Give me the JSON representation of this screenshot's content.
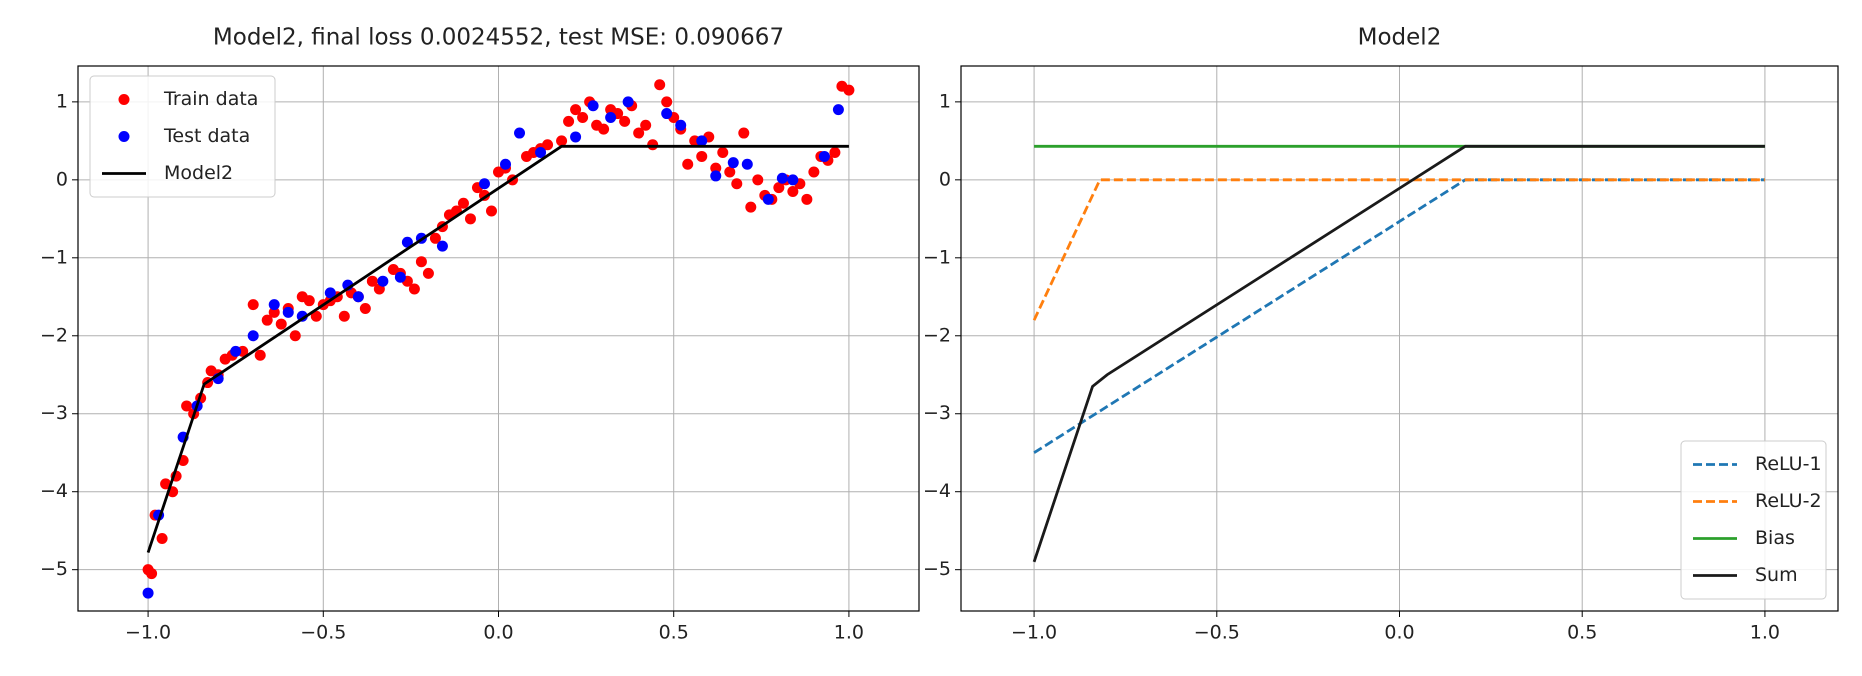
{
  "chart_data": [
    {
      "type": "line",
      "title": "Model2, final loss 0.0024552, test MSE: 0.090667",
      "legend": "upper left",
      "grid": true,
      "xlim": [
        -1.2,
        1.2
      ],
      "ylim": [
        -5.53,
        1.46
      ],
      "xticks": [
        {
          "value": -1.0,
          "label": "−1.0"
        },
        {
          "value": -0.5,
          "label": "−0.5"
        },
        {
          "value": 0.0,
          "label": "0.0"
        },
        0.5,
        {
          "value": 1.0,
          "label": "1.0"
        }
      ],
      "yticks": [
        {
          "value": -5,
          "label": "−5"
        },
        {
          "value": -4,
          "label": "−4"
        },
        {
          "value": -3,
          "label": "−3"
        },
        {
          "value": -2,
          "label": "−2"
        },
        {
          "value": -1,
          "label": "−1"
        },
        0,
        1
      ],
      "series": [
        {
          "name": "Train data",
          "color": "#ff0000",
          "style": "marker",
          "x": [
            -1.0,
            -0.99,
            -0.98,
            -0.96,
            -0.95,
            -0.93,
            -0.92,
            -0.9,
            -0.89,
            -0.87,
            -0.85,
            -0.83,
            -0.82,
            -0.8,
            -0.78,
            -0.76,
            -0.73,
            -0.7,
            -0.68,
            -0.66,
            -0.64,
            -0.62,
            -0.6,
            -0.58,
            -0.56,
            -0.54,
            -0.52,
            -0.5,
            -0.48,
            -0.46,
            -0.44,
            -0.42,
            -0.4,
            -0.38,
            -0.36,
            -0.34,
            -0.3,
            -0.28,
            -0.26,
            -0.24,
            -0.22,
            -0.2,
            -0.18,
            -0.16,
            -0.14,
            -0.12,
            -0.1,
            -0.08,
            -0.06,
            -0.04,
            -0.02,
            0.0,
            0.02,
            0.04,
            0.08,
            0.1,
            0.12,
            0.14,
            0.18,
            0.2,
            0.22,
            0.24,
            0.26,
            0.28,
            0.3,
            0.32,
            0.34,
            0.36,
            0.38,
            0.4,
            0.42,
            0.44,
            0.46,
            0.48,
            0.5,
            0.52,
            0.54,
            0.56,
            0.58,
            0.6,
            0.62,
            0.64,
            0.66,
            0.68,
            0.7,
            0.72,
            0.74,
            0.76,
            0.78,
            0.8,
            0.82,
            0.84,
            0.86,
            0.88,
            0.9,
            0.92,
            0.94,
            0.96,
            0.98,
            1.0
          ],
          "values": [
            -5.0,
            -5.05,
            -4.3,
            -4.6,
            -3.9,
            -4.0,
            -3.8,
            -3.6,
            -2.9,
            -3.0,
            -2.8,
            -2.6,
            -2.45,
            -2.5,
            -2.3,
            -2.25,
            -2.2,
            -1.6,
            -2.25,
            -1.8,
            -1.7,
            -1.85,
            -1.65,
            -2.0,
            -1.5,
            -1.55,
            -1.75,
            -1.6,
            -1.55,
            -1.5,
            -1.75,
            -1.45,
            -1.5,
            -1.65,
            -1.3,
            -1.4,
            -1.15,
            -1.2,
            -1.3,
            -1.4,
            -1.05,
            -1.2,
            -0.75,
            -0.6,
            -0.45,
            -0.4,
            -0.3,
            -0.5,
            -0.1,
            -0.2,
            -0.4,
            0.1,
            0.15,
            0.0,
            0.3,
            0.35,
            0.4,
            0.45,
            0.5,
            0.75,
            0.9,
            0.8,
            1.0,
            0.7,
            0.65,
            0.9,
            0.85,
            0.75,
            0.95,
            0.6,
            0.7,
            0.45,
            1.22,
            1.0,
            0.8,
            0.65,
            0.2,
            0.5,
            0.3,
            0.55,
            0.15,
            0.35,
            0.1,
            -0.05,
            0.6,
            -0.35,
            0.0,
            -0.2,
            -0.25,
            -0.1,
            0.0,
            -0.15,
            -0.05,
            -0.25,
            0.1,
            0.3,
            0.25,
            0.35,
            1.2,
            1.15
          ]
        },
        {
          "name": "Test data",
          "color": "#0000ff",
          "style": "marker",
          "x": [
            -1.0,
            -0.97,
            -0.9,
            -0.86,
            -0.8,
            -0.75,
            -0.7,
            -0.64,
            -0.6,
            -0.56,
            -0.48,
            -0.43,
            -0.4,
            -0.33,
            -0.28,
            -0.26,
            -0.22,
            -0.16,
            -0.04,
            0.02,
            0.06,
            0.12,
            0.22,
            0.27,
            0.32,
            0.37,
            0.48,
            0.52,
            0.58,
            0.62,
            0.67,
            0.71,
            0.77,
            0.81,
            0.84,
            0.93,
            0.97
          ],
          "values": [
            -5.3,
            -4.3,
            -3.3,
            -2.9,
            -2.55,
            -2.2,
            -2.0,
            -1.6,
            -1.7,
            -1.75,
            -1.45,
            -1.35,
            -1.5,
            -1.3,
            -1.25,
            -0.8,
            -0.75,
            -0.85,
            -0.05,
            0.2,
            0.6,
            0.35,
            0.55,
            0.95,
            0.8,
            1.0,
            0.85,
            0.7,
            0.5,
            0.05,
            0.22,
            0.2,
            -0.25,
            0.02,
            0.0,
            0.3,
            0.9
          ]
        },
        {
          "name": "Model2",
          "color": "#000000",
          "style": "solid",
          "x": [
            -1.0,
            -0.84,
            0.18,
            1.0
          ],
          "values": [
            -4.78,
            -2.62,
            0.43,
            0.43
          ]
        }
      ]
    },
    {
      "type": "line",
      "title": "Model2",
      "legend": "lower right",
      "grid": true,
      "xlim": [
        -1.2,
        1.2
      ],
      "ylim": [
        -5.53,
        1.46
      ],
      "xticks": [
        {
          "value": -1.0,
          "label": "−1.0"
        },
        {
          "value": -0.5,
          "label": "−0.5"
        },
        {
          "value": 0.0,
          "label": "0.0"
        },
        0.5,
        {
          "value": 1.0,
          "label": "1.0"
        }
      ],
      "yticks": [
        {
          "value": -5,
          "label": "−5"
        },
        {
          "value": -4,
          "label": "−4"
        },
        {
          "value": -3,
          "label": "−3"
        },
        {
          "value": -2,
          "label": "−2"
        },
        {
          "value": -1,
          "label": "−1"
        },
        0,
        1
      ],
      "series": [
        {
          "name": "ReLU-1",
          "color": "#1f77b4",
          "style": "dashed",
          "x": [
            -1.0,
            0.18,
            1.0
          ],
          "values": [
            -3.5,
            0.0,
            0.0
          ]
        },
        {
          "name": "ReLU-2",
          "color": "#ff7f0e",
          "style": "dashed",
          "x": [
            -1.0,
            -0.82,
            1.0
          ],
          "values": [
            -1.8,
            0.0,
            0.0
          ]
        },
        {
          "name": "Bias",
          "color": "#2ca02c",
          "style": "solid",
          "x": [
            -1.0,
            1.0
          ],
          "values": [
            0.43,
            0.43
          ]
        },
        {
          "name": "Sum",
          "color": "#1a1a1a",
          "style": "solid",
          "x": [
            -1.0,
            -0.84,
            -0.8,
            0.18,
            1.0
          ],
          "values": [
            -4.9,
            -2.65,
            -2.5,
            0.43,
            0.43
          ]
        }
      ]
    }
  ]
}
